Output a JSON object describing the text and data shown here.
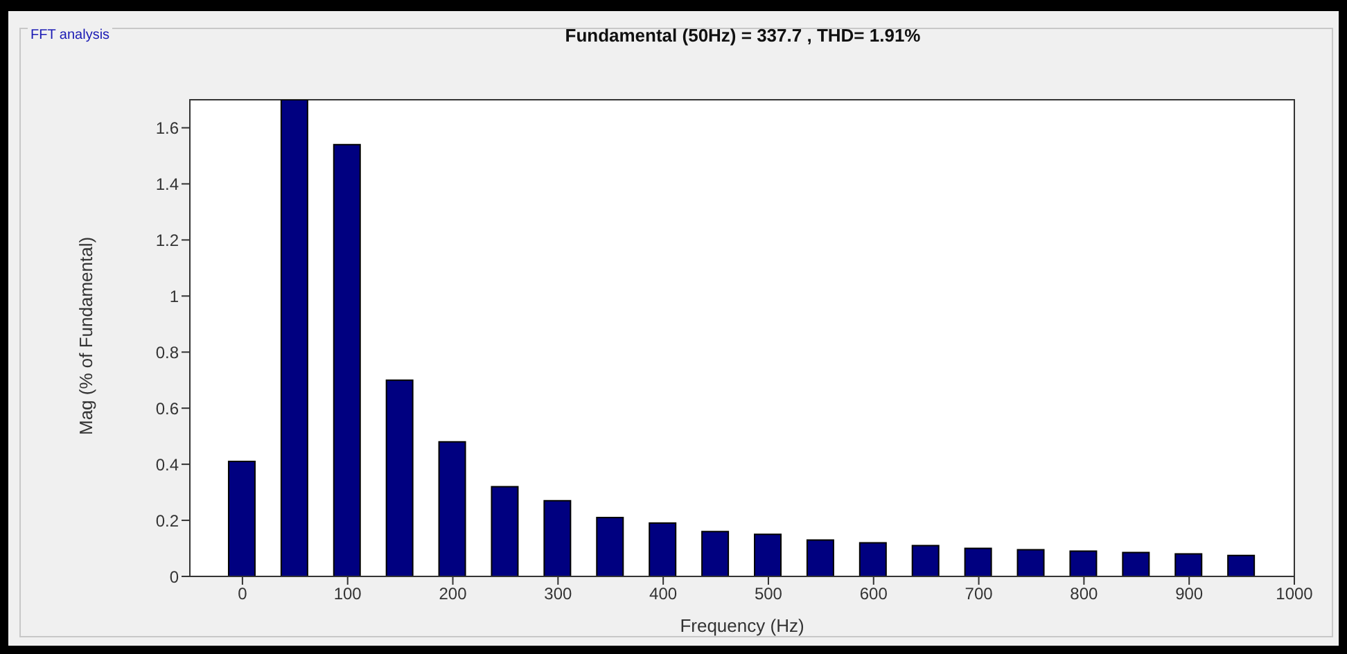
{
  "chart_data": {
    "type": "bar",
    "title": "Fundamental (50Hz) = 337.7 , THD= 1.91%",
    "xlabel": "Frequency (Hz)",
    "ylabel": "Mag (% of Fundamental)",
    "annotations": [
      "FFT analysis"
    ],
    "x": [
      0,
      50,
      100,
      150,
      200,
      250,
      300,
      350,
      400,
      450,
      500,
      550,
      600,
      650,
      700,
      750,
      800,
      850,
      900,
      950
    ],
    "values": [
      0.41,
      1.7,
      1.54,
      0.7,
      0.48,
      0.32,
      0.27,
      0.21,
      0.19,
      0.16,
      0.15,
      0.13,
      0.12,
      0.11,
      0.1,
      0.095,
      0.09,
      0.085,
      0.08,
      0.075
    ],
    "color": "#000080",
    "xlim": [
      -50,
      1000
    ],
    "xticks": [
      0,
      100,
      200,
      300,
      400,
      500,
      600,
      700,
      800,
      900,
      1000
    ],
    "ylim": [
      0,
      1.7
    ],
    "yticks": [
      0,
      0.2,
      0.4,
      0.6,
      0.8,
      1,
      1.2,
      1.4,
      1.6
    ]
  }
}
